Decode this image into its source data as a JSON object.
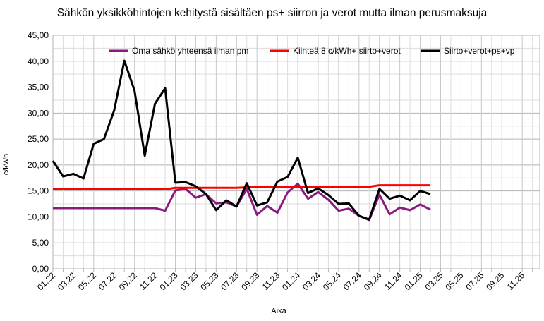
{
  "chart_data": {
    "type": "line",
    "title": "Sähkön yksikköhintojen kehitystä sisältäen  ps+ siirron ja verot mutta ilman perusmaksuja",
    "xlabel": "Aika",
    "ylabel": "c/kWh",
    "ylim": [
      0,
      45
    ],
    "yticks": [
      "0,00",
      "5,00",
      "10,00",
      "15,00",
      "20,00",
      "25,00",
      "30,00",
      "35,00",
      "40,00",
      "45,00"
    ],
    "xticks": [
      "01.22",
      "03.22",
      "05.22",
      "07.22",
      "09.22",
      "11.22",
      "01.23",
      "03.23",
      "05.23",
      "07.23",
      "09.23",
      "11.23",
      "01.24",
      "03.24",
      "05.24",
      "07.24",
      "09.24",
      "11.24",
      "01.25",
      "03.25",
      "05.25",
      "07.25",
      "09.25",
      "11.25"
    ],
    "x": [
      "01.22",
      "02.22",
      "03.22",
      "04.22",
      "05.22",
      "06.22",
      "07.22",
      "08.22",
      "09.22",
      "10.22",
      "11.22",
      "12.22",
      "01.23",
      "02.23",
      "03.23",
      "04.23",
      "05.23",
      "06.23",
      "07.23",
      "08.23",
      "09.23",
      "10.23",
      "11.23",
      "12.23",
      "01.24",
      "02.24",
      "03.24",
      "04.24",
      "05.24",
      "06.24",
      "07.24",
      "08.24",
      "09.24",
      "10.24",
      "11.24",
      "12.24",
      "01.25",
      "02.25"
    ],
    "grid": true,
    "legend_position": "top",
    "series": [
      {
        "name": "Oma sähkö yhteensä  ilman pm",
        "color": "#8B1A7F",
        "values": [
          11.7,
          11.7,
          11.7,
          11.7,
          11.7,
          11.7,
          11.7,
          11.7,
          11.7,
          11.7,
          11.7,
          11.2,
          15.1,
          15.4,
          13.7,
          14.4,
          12.6,
          12.8,
          12.0,
          15.4,
          10.4,
          12.1,
          10.8,
          14.7,
          16.4,
          13.5,
          14.8,
          13.3,
          11.2,
          11.6,
          10.2,
          9.4,
          14.3,
          10.5,
          11.8,
          11.3,
          12.4,
          11.4
        ]
      },
      {
        "name": "Kiinteä 8 c/kWh+ siirto+verot",
        "color": "#FF0000",
        "values": [
          15.3,
          15.3,
          15.3,
          15.3,
          15.3,
          15.3,
          15.3,
          15.3,
          15.3,
          15.3,
          15.3,
          15.3,
          15.6,
          15.6,
          15.6,
          15.6,
          15.6,
          15.6,
          15.6,
          15.7,
          15.8,
          15.8,
          15.8,
          15.8,
          15.8,
          15.8,
          15.8,
          15.8,
          15.8,
          15.8,
          15.8,
          15.8,
          16.1,
          16.1,
          16.1,
          16.1,
          16.1,
          16.1
        ]
      },
      {
        "name": "Siirto+verot+ps+vp",
        "color": "#000000",
        "values": [
          20.8,
          17.8,
          18.3,
          17.4,
          24.1,
          25.0,
          30.5,
          40.1,
          34.3,
          21.8,
          31.8,
          34.8,
          16.6,
          16.7,
          15.9,
          14.4,
          11.3,
          13.2,
          12.0,
          16.5,
          12.2,
          12.8,
          16.8,
          17.7,
          21.4,
          14.6,
          15.5,
          14.2,
          12.5,
          12.6,
          10.2,
          9.5,
          15.4,
          13.5,
          14.1,
          13.2,
          15.0,
          14.4
        ]
      }
    ]
  }
}
